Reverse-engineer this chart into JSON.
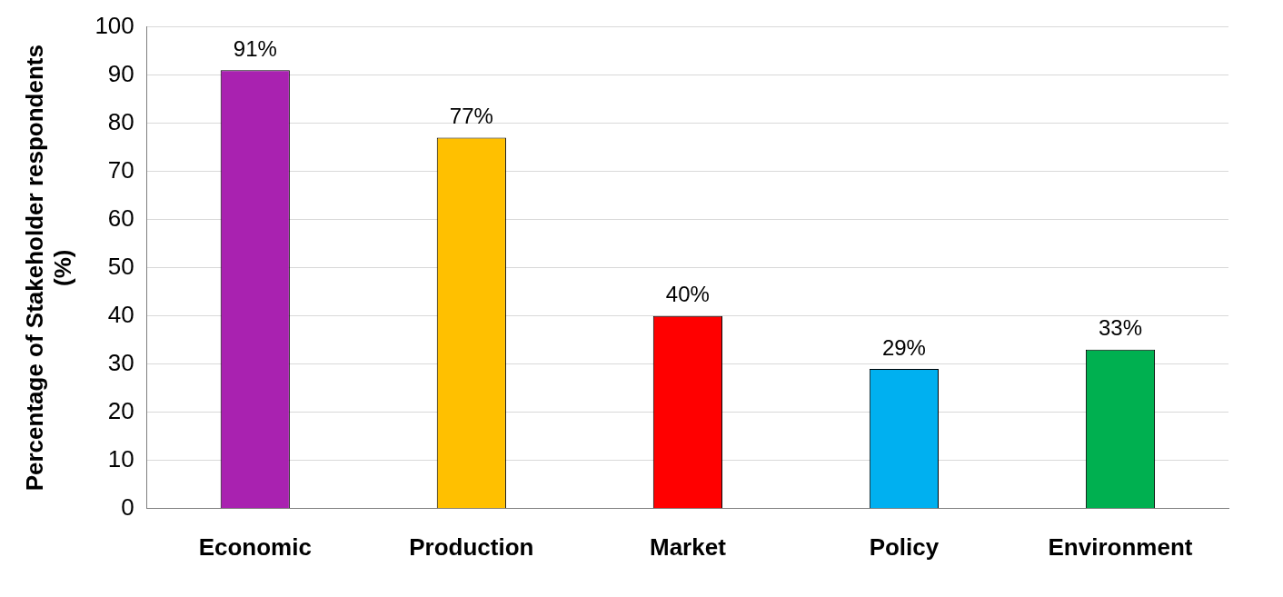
{
  "chart_data": {
    "type": "bar",
    "ylabel": "Percentage of Stakeholder respondents (%)",
    "categories": [
      "Economic",
      "Production",
      "Market",
      "Policy",
      "Environment"
    ],
    "values": [
      91,
      77,
      40,
      29,
      33
    ],
    "colors": [
      "#a922b0",
      "#ffc000",
      "#ff0000",
      "#00b0f0",
      "#00b050"
    ],
    "value_labels": [
      "91%",
      "77%",
      "40%",
      "29%",
      "33%"
    ],
    "ylim": [
      0,
      100
    ],
    "yticks": [
      0,
      10,
      20,
      30,
      40,
      50,
      60,
      70,
      80,
      90,
      100
    ],
    "grid": "y",
    "legend": false
  }
}
